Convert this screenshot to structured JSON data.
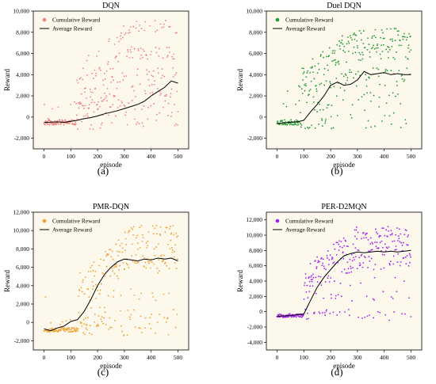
{
  "chart_data": [
    {
      "type": "scatter",
      "title": "DQN",
      "caption": "(a)",
      "xlabel": "episode",
      "ylabel": "Reward",
      "xlim": [
        -40,
        540
      ],
      "ylim": [
        -3000,
        10000
      ],
      "xticks": [
        0,
        100,
        200,
        300,
        400,
        500
      ],
      "yticks": [
        -2000,
        0,
        2000,
        4000,
        6000,
        8000,
        10000
      ],
      "ytick_labels": [
        "-2,000",
        "0",
        "2,000",
        "4,000",
        "6,000",
        "8,000",
        "10,000"
      ],
      "legend_position": "top-left",
      "series": [
        {
          "name": "Cumulative Reward",
          "kind": "scatter",
          "color": "#f08080",
          "pattern": {
            "base": [
              -500,
              -400,
              600,
              1000,
              1400
            ],
            "high": [
              2500,
              4000,
              6000,
              8500
            ],
            "start_rise": 120,
            "seed": 11
          }
        },
        {
          "name": "Average Reward",
          "kind": "line",
          "color": "#000000",
          "x": [
            0,
            25,
            50,
            75,
            100,
            125,
            150,
            175,
            200,
            225,
            250,
            275,
            300,
            325,
            350,
            375,
            400,
            425,
            450,
            475,
            500
          ],
          "y": [
            -500,
            -480,
            -450,
            -500,
            -400,
            -300,
            -150,
            -50,
            100,
            300,
            450,
            600,
            800,
            1000,
            1200,
            1500,
            2000,
            2400,
            2800,
            3400,
            3200
          ]
        }
      ]
    },
    {
      "type": "scatter",
      "title": "Duel DQN",
      "caption": "(b)",
      "xlabel": "episode",
      "ylabel": "Reward",
      "xlim": [
        -40,
        540
      ],
      "ylim": [
        -3000,
        10000
      ],
      "xticks": [
        0,
        100,
        200,
        300,
        400,
        500
      ],
      "yticks": [
        -2000,
        0,
        2000,
        4000,
        6000,
        8000,
        10000
      ],
      "ytick_labels": [
        "-2,000",
        "0",
        "2,000",
        "4,000",
        "6,000",
        "8,000",
        "10,000"
      ],
      "legend_position": "top-left",
      "series": [
        {
          "name": "Cumulative Reward",
          "kind": "scatter",
          "color": "#1f9a2f",
          "pattern": {
            "base": [
              -500,
              -400,
              1000,
              2500
            ],
            "high": [
              4000,
              6000,
              7000,
              7800
            ],
            "start_rise": 80,
            "seed": 23
          }
        },
        {
          "name": "Average Reward",
          "kind": "line",
          "color": "#000000",
          "x": [
            0,
            25,
            50,
            75,
            100,
            125,
            150,
            175,
            200,
            225,
            250,
            275,
            300,
            325,
            350,
            375,
            400,
            425,
            450,
            475,
            500
          ],
          "y": [
            -600,
            -550,
            -500,
            -450,
            -300,
            500,
            1200,
            2000,
            3000,
            3300,
            3000,
            3100,
            3500,
            4300,
            4000,
            4100,
            4200,
            4000,
            4100,
            4000,
            4000
          ]
        }
      ]
    },
    {
      "type": "scatter",
      "title": "PMR-DQN",
      "caption": "(c)",
      "xlabel": "episode",
      "ylabel": "Reward",
      "xlim": [
        -40,
        540
      ],
      "ylim": [
        -3000,
        12000
      ],
      "xticks": [
        0,
        100,
        200,
        300,
        400,
        500
      ],
      "yticks": [
        -2000,
        0,
        2000,
        4000,
        6000,
        8000,
        10000,
        12000
      ],
      "ytick_labels": [
        "-2,000",
        "0",
        "2,000",
        "4,000",
        "6,000",
        "8,000",
        "10,000",
        "12,000"
      ],
      "legend_position": "top-left",
      "series": [
        {
          "name": "Cumulative Reward",
          "kind": "scatter",
          "color": "#f0a030",
          "pattern": {
            "base": [
              -800,
              0,
              1000,
              3000
            ],
            "high": [
              6000,
              7000,
              7800,
              9000,
              10000
            ],
            "start_rise": 130,
            "seed": 37
          }
        },
        {
          "name": "Average Reward",
          "kind": "line",
          "color": "#000000",
          "x": [
            0,
            25,
            50,
            75,
            100,
            125,
            150,
            175,
            200,
            225,
            250,
            275,
            300,
            325,
            350,
            375,
            400,
            425,
            450,
            475,
            500
          ],
          "y": [
            -700,
            -900,
            -600,
            -400,
            100,
            300,
            1200,
            2500,
            4000,
            5200,
            6000,
            6600,
            6900,
            6800,
            6700,
            6900,
            6800,
            7000,
            6900,
            7000,
            6700
          ]
        }
      ]
    },
    {
      "type": "scatter",
      "title": "PER-D2MQN",
      "caption": "(d)",
      "xlabel": "episode",
      "ylabel": "Reward",
      "xlim": [
        -40,
        540
      ],
      "ylim": [
        -5000,
        13000
      ],
      "xticks": [
        0,
        100,
        200,
        300,
        400,
        500
      ],
      "yticks": [
        -4000,
        -2000,
        0,
        2000,
        4000,
        6000,
        8000,
        10000,
        12000
      ],
      "ytick_labels": [
        "-4,000",
        "-2,000",
        "0",
        "2,000",
        "4,000",
        "6,000",
        "8,000",
        "10,000",
        "12,000"
      ],
      "legend_position": "top-left",
      "series": [
        {
          "name": "Cumulative Reward",
          "kind": "scatter",
          "color": "#a020f0",
          "pattern": {
            "base": [
              -500,
              -300,
              2000,
              4000
            ],
            "high": [
              6000,
              7500,
              8500,
              9500,
              10500
            ],
            "start_rise": 100,
            "seed": 53
          }
        },
        {
          "name": "Average Reward",
          "kind": "line",
          "color": "#000000",
          "x": [
            0,
            25,
            50,
            75,
            100,
            125,
            150,
            175,
            200,
            225,
            250,
            275,
            300,
            325,
            350,
            375,
            400,
            425,
            450,
            475,
            500
          ],
          "y": [
            -600,
            -550,
            -500,
            -400,
            -300,
            1500,
            3200,
            4500,
            5500,
            6500,
            7300,
            7600,
            7800,
            7700,
            7800,
            7900,
            7800,
            7900,
            7800,
            7900,
            8000
          ]
        }
      ]
    }
  ]
}
